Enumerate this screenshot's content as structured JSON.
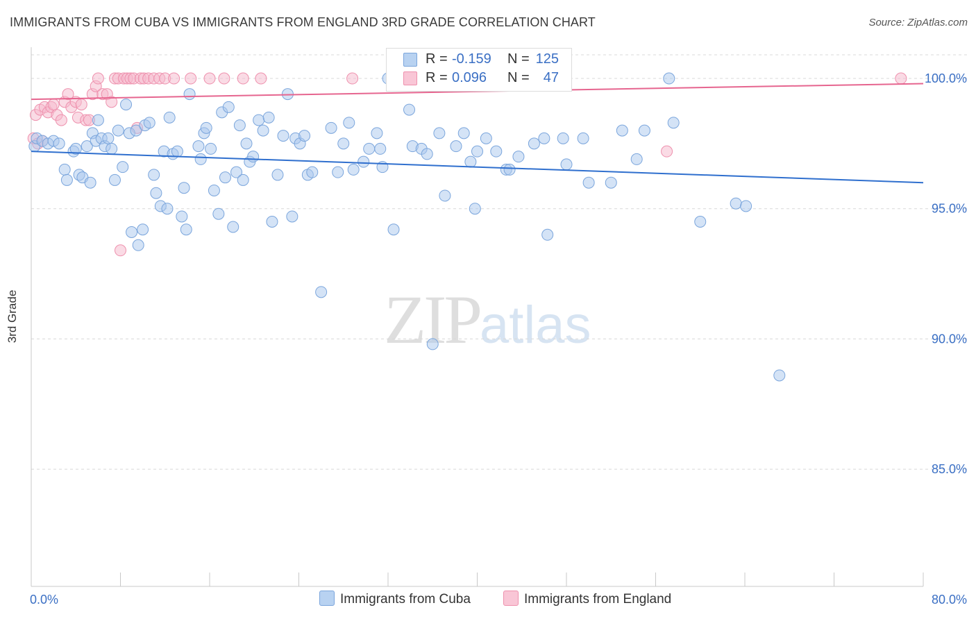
{
  "title": "IMMIGRANTS FROM CUBA VS IMMIGRANTS FROM ENGLAND 3RD GRADE CORRELATION CHART",
  "source": "Source: ZipAtlas.com",
  "watermark": {
    "zip": "ZIP",
    "atlas": "atlas"
  },
  "legend": {
    "rows": [
      {
        "r_label": "R =",
        "r_value": "-0.159",
        "n_label": "N =",
        "n_value": "125"
      },
      {
        "r_label": "R =",
        "r_value": "0.096",
        "n_label": "N =",
        "n_value": "47"
      }
    ]
  },
  "colors": {
    "cuba_fill": "#a9c8ee",
    "cuba_stroke": "#7aa5dc",
    "cuba_line": "#2f6fce",
    "england_fill": "#f6b8cc",
    "england_stroke": "#ee90ad",
    "england_line": "#e6658f",
    "tick_label": "#3a6fc4",
    "grid": "#d8d8d8"
  },
  "chart_data": {
    "type": "scatter",
    "title": "IMMIGRANTS FROM CUBA VS IMMIGRANTS FROM ENGLAND 3RD GRADE CORRELATION CHART",
    "xlabel": "",
    "ylabel": "3rd Grade",
    "xlim": [
      0,
      80
    ],
    "ylim": [
      80.5,
      101.2
    ],
    "x_tick_labels": [
      "0.0%",
      "80.0%"
    ],
    "y_ticks": [
      85,
      90,
      95,
      100
    ],
    "y_tick_labels": [
      "85.0%",
      "90.0%",
      "95.0%",
      "100.0%"
    ],
    "grid": true,
    "series": [
      {
        "name": "Immigrants from Cuba",
        "trend": {
          "x": [
            0,
            80
          ],
          "y": [
            97.2,
            96.0
          ]
        },
        "points": [
          [
            0.3,
            97.4
          ],
          [
            0.5,
            97.7
          ],
          [
            1.0,
            97.6
          ],
          [
            1.5,
            97.5
          ],
          [
            2.0,
            97.6
          ],
          [
            2.5,
            97.5
          ],
          [
            3.0,
            96.5
          ],
          [
            3.2,
            96.1
          ],
          [
            3.8,
            97.2
          ],
          [
            4.0,
            97.3
          ],
          [
            4.3,
            96.3
          ],
          [
            4.6,
            96.2
          ],
          [
            5.0,
            97.4
          ],
          [
            5.3,
            96.0
          ],
          [
            5.5,
            97.9
          ],
          [
            5.8,
            97.6
          ],
          [
            6.0,
            98.4
          ],
          [
            6.3,
            97.7
          ],
          [
            6.6,
            97.4
          ],
          [
            6.9,
            97.7
          ],
          [
            7.2,
            97.3
          ],
          [
            7.5,
            96.1
          ],
          [
            7.8,
            98.0
          ],
          [
            8.2,
            96.6
          ],
          [
            8.5,
            99.0
          ],
          [
            8.8,
            97.9
          ],
          [
            9.0,
            94.1
          ],
          [
            9.4,
            98.0
          ],
          [
            9.6,
            93.6
          ],
          [
            10.0,
            94.2
          ],
          [
            10.2,
            98.2
          ],
          [
            10.6,
            98.3
          ],
          [
            11.0,
            96.3
          ],
          [
            11.2,
            95.6
          ],
          [
            11.6,
            95.1
          ],
          [
            11.9,
            97.2
          ],
          [
            12.2,
            95.0
          ],
          [
            12.4,
            98.5
          ],
          [
            12.7,
            97.1
          ],
          [
            13.1,
            97.2
          ],
          [
            13.5,
            94.7
          ],
          [
            13.7,
            95.8
          ],
          [
            13.9,
            94.2
          ],
          [
            14.2,
            99.4
          ],
          [
            15.0,
            97.4
          ],
          [
            15.2,
            96.9
          ],
          [
            15.5,
            97.9
          ],
          [
            15.7,
            98.1
          ],
          [
            16.1,
            97.3
          ],
          [
            16.4,
            95.7
          ],
          [
            16.8,
            94.8
          ],
          [
            17.1,
            98.7
          ],
          [
            17.4,
            96.2
          ],
          [
            17.7,
            98.9
          ],
          [
            18.1,
            94.3
          ],
          [
            18.4,
            96.4
          ],
          [
            18.7,
            98.2
          ],
          [
            19.0,
            96.1
          ],
          [
            19.3,
            97.5
          ],
          [
            19.6,
            96.8
          ],
          [
            19.9,
            97.0
          ],
          [
            20.4,
            98.4
          ],
          [
            20.8,
            98.0
          ],
          [
            21.3,
            98.5
          ],
          [
            21.6,
            94.5
          ],
          [
            22.1,
            96.3
          ],
          [
            22.6,
            97.8
          ],
          [
            23.0,
            99.4
          ],
          [
            23.4,
            94.7
          ],
          [
            23.7,
            97.7
          ],
          [
            24.1,
            97.5
          ],
          [
            24.5,
            97.8
          ],
          [
            24.8,
            96.3
          ],
          [
            25.2,
            96.4
          ],
          [
            26.0,
            91.8
          ],
          [
            26.9,
            98.1
          ],
          [
            27.5,
            96.4
          ],
          [
            28.0,
            97.5
          ],
          [
            28.5,
            98.3
          ],
          [
            28.9,
            96.5
          ],
          [
            29.8,
            96.8
          ],
          [
            30.3,
            97.3
          ],
          [
            31.0,
            97.9
          ],
          [
            31.3,
            97.3
          ],
          [
            31.5,
            96.6
          ],
          [
            32.0,
            100.0
          ],
          [
            32.5,
            94.2
          ],
          [
            33.9,
            98.8
          ],
          [
            34.2,
            97.4
          ],
          [
            35.0,
            97.3
          ],
          [
            35.5,
            97.1
          ],
          [
            36.0,
            89.8
          ],
          [
            36.6,
            97.9
          ],
          [
            37.1,
            95.5
          ],
          [
            38.1,
            97.4
          ],
          [
            38.8,
            97.9
          ],
          [
            39.4,
            96.8
          ],
          [
            39.8,
            95.0
          ],
          [
            40.0,
            97.2
          ],
          [
            40.8,
            97.7
          ],
          [
            41.7,
            97.2
          ],
          [
            42.6,
            96.5
          ],
          [
            42.9,
            96.5
          ],
          [
            43.7,
            97.0
          ],
          [
            45.1,
            97.5
          ],
          [
            46.0,
            97.7
          ],
          [
            46.3,
            94.0
          ],
          [
            47.7,
            97.7
          ],
          [
            48.0,
            96.7
          ],
          [
            49.5,
            97.7
          ],
          [
            50.0,
            96.0
          ],
          [
            52.0,
            96.0
          ],
          [
            53.0,
            98.0
          ],
          [
            54.3,
            96.9
          ],
          [
            55.0,
            98.0
          ],
          [
            57.2,
            100.0
          ],
          [
            57.6,
            98.3
          ],
          [
            60.0,
            94.5
          ],
          [
            63.2,
            95.2
          ],
          [
            64.1,
            95.1
          ],
          [
            67.1,
            88.6
          ]
        ]
      },
      {
        "name": "Immigrants from England",
        "trend": {
          "x": [
            0,
            80
          ],
          "y": [
            99.2,
            99.8
          ]
        },
        "points": [
          [
            0.2,
            97.7
          ],
          [
            0.4,
            98.6
          ],
          [
            0.6,
            97.5
          ],
          [
            0.8,
            98.8
          ],
          [
            1.0,
            97.6
          ],
          [
            1.2,
            98.9
          ],
          [
            1.5,
            98.7
          ],
          [
            1.8,
            98.9
          ],
          [
            2.0,
            99.0
          ],
          [
            2.3,
            98.6
          ],
          [
            2.7,
            98.4
          ],
          [
            3.0,
            99.1
          ],
          [
            3.3,
            99.4
          ],
          [
            3.6,
            98.9
          ],
          [
            4.0,
            99.1
          ],
          [
            4.2,
            98.5
          ],
          [
            4.5,
            99.0
          ],
          [
            4.9,
            98.4
          ],
          [
            5.2,
            98.4
          ],
          [
            5.5,
            99.4
          ],
          [
            5.8,
            99.7
          ],
          [
            6.0,
            100.0
          ],
          [
            6.4,
            99.4
          ],
          [
            6.8,
            99.4
          ],
          [
            7.2,
            99.1
          ],
          [
            7.5,
            100.0
          ],
          [
            7.8,
            100.0
          ],
          [
            8.0,
            93.4
          ],
          [
            8.3,
            100.0
          ],
          [
            8.6,
            100.0
          ],
          [
            8.9,
            100.0
          ],
          [
            9.2,
            100.0
          ],
          [
            9.5,
            98.1
          ],
          [
            9.8,
            100.0
          ],
          [
            10.1,
            100.0
          ],
          [
            10.5,
            100.0
          ],
          [
            11.0,
            100.0
          ],
          [
            11.5,
            100.0
          ],
          [
            12.0,
            100.0
          ],
          [
            12.8,
            100.0
          ],
          [
            14.3,
            100.0
          ],
          [
            16.0,
            100.0
          ],
          [
            17.3,
            100.0
          ],
          [
            19.0,
            100.0
          ],
          [
            20.6,
            100.0
          ],
          [
            28.8,
            100.0
          ],
          [
            57.0,
            97.2
          ],
          [
            78.0,
            100.0
          ]
        ]
      }
    ]
  },
  "bottom_legend": [
    "Immigrants from Cuba",
    "Immigrants from England"
  ]
}
